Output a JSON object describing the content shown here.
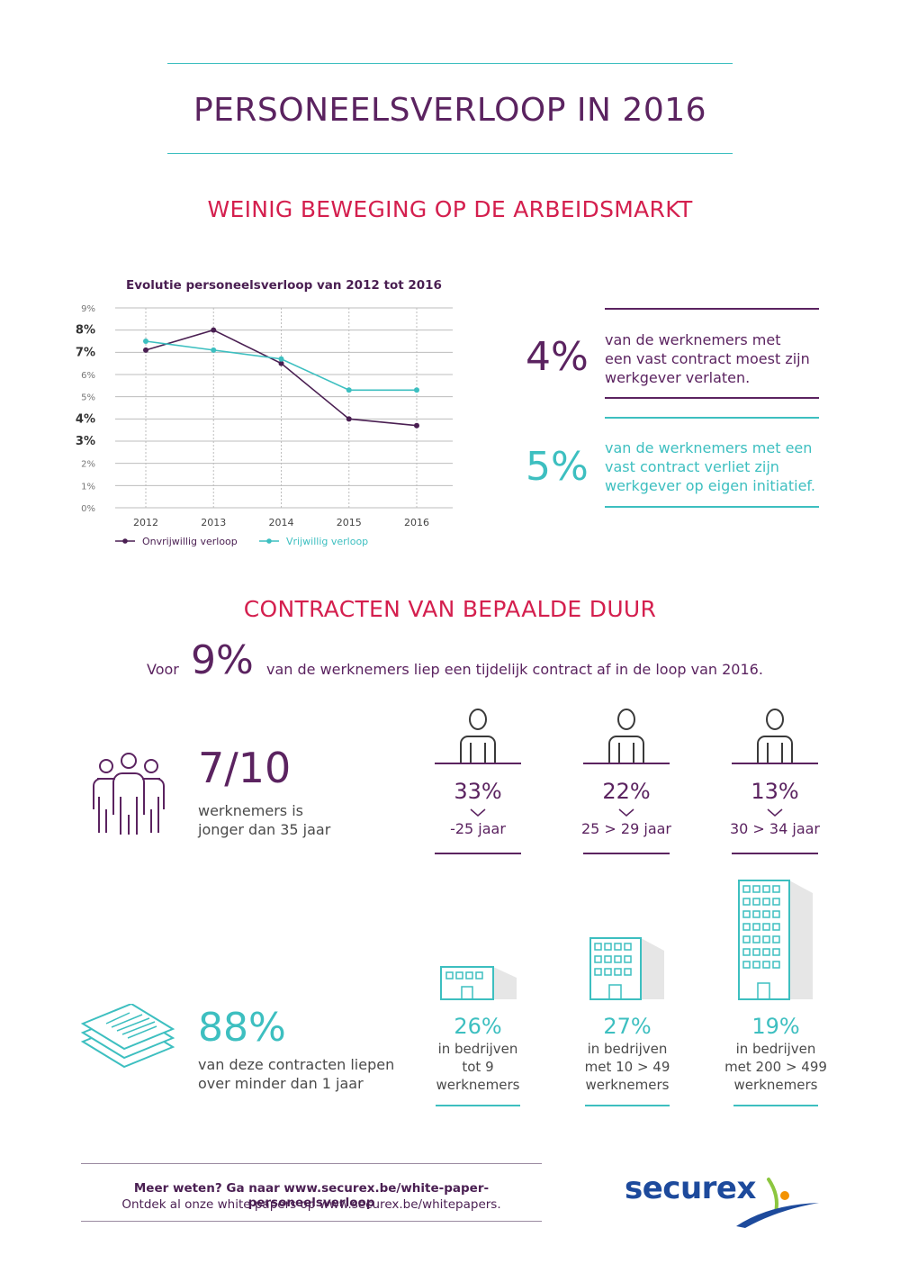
{
  "title": "PERSONEELSVERLOOP IN 2016",
  "section1_title": "WEINIG BEWEGING OP DE ARBEIDSMARKT",
  "chart_data": {
    "type": "line",
    "title": "Evolutie personeelsverloop van 2012 tot 2016",
    "categories": [
      "2012",
      "2013",
      "2014",
      "2015",
      "2016"
    ],
    "ylim": [
      0,
      9
    ],
    "yticks": [
      "0%",
      "1%",
      "2%",
      "3%",
      "4%",
      "5%",
      "6%",
      "7%",
      "8%",
      "9%"
    ],
    "bold_yticks": [
      "3%",
      "4%",
      "7%",
      "8%"
    ],
    "series": [
      {
        "name": "Onvrijwillig verloop",
        "color": "#4a1f52",
        "values": [
          7.1,
          8.0,
          6.5,
          4.0,
          3.7
        ]
      },
      {
        "name": "Vrijwillig verloop",
        "color": "#3dbfc0",
        "values": [
          7.5,
          7.1,
          6.7,
          5.3,
          5.3
        ]
      }
    ],
    "grid": true,
    "legend": "bottom"
  },
  "stats": [
    {
      "value": "4%",
      "text_lines": [
        "van de werknemers met",
        "een vast contract moest zijn",
        "werkgever verlaten."
      ],
      "color": "#5b2360"
    },
    {
      "value": "5%",
      "text_lines": [
        "van de werknemers met een",
        "vast contract verliet zijn",
        "werkgever op eigen initiatief."
      ],
      "color": "#3dbfc0"
    }
  ],
  "section2_title": "CONTRACTEN VAN BEPAALDE DUUR",
  "temp": {
    "prefix": "Voor",
    "value": "9%",
    "suffix": "van de werknemers liep een tijdelijk contract af in de loop van 2016."
  },
  "young": {
    "value": "7/10",
    "lines": [
      "werknemers is",
      "jonger dan 35 jaar"
    ]
  },
  "ages": [
    {
      "pct": "33%",
      "label": "-25 jaar"
    },
    {
      "pct": "22%",
      "label": "25 > 29 jaar"
    },
    {
      "pct": "13%",
      "label": "30 > 34 jaar"
    }
  ],
  "short": {
    "value": "88%",
    "lines": [
      "van deze contracten liepen",
      "over minder dan 1 jaar"
    ]
  },
  "companies": [
    {
      "pct": "26%",
      "lines": [
        "in bedrijven",
        "tot 9",
        "werknemers"
      ]
    },
    {
      "pct": "27%",
      "lines": [
        "in bedrijven",
        "met 10 > 49",
        "werknemers"
      ]
    },
    {
      "pct": "19%",
      "lines": [
        "in bedrijven",
        "met 200 > 499",
        "werknemers"
      ]
    }
  ],
  "footer": {
    "line1": "Meer weten? Ga naar www.securex.be/white-paper-personeelsverloop",
    "line2": "Ontdek al onze white papers op www.securex.be/whitepapers."
  },
  "logo": {
    "text": "securex"
  },
  "colors": {
    "purple": "#5b2360",
    "teal": "#3dbfc0",
    "red": "#d41f4e",
    "logo_blue": "#1d4a9c",
    "logo_orange": "#f39200",
    "logo_green": "#8cc63f"
  }
}
